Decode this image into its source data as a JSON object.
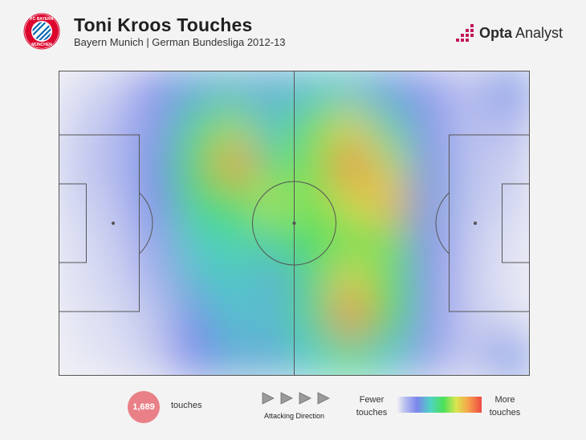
{
  "header": {
    "title": "Toni Kroos Touches",
    "subtitle": "Bayern Munich | German Bundesliga 2012-13",
    "club_badge_icon": "fc-bayern-munchen-badge-icon",
    "brand": {
      "name_bold": "Opta",
      "name_regular": " Analyst"
    }
  },
  "footer": {
    "touch_count": "1,689",
    "touch_label": "touches",
    "direction_label": "Attacking Direction",
    "legend_low": "Fewer touches",
    "legend_high": "More touches"
  },
  "colors": {
    "background": "#f3f3f3",
    "badge_red": "#dc052d",
    "badge_blue": "#0066b2",
    "brand_pink": "#c2185b",
    "count_badge": "#e98087",
    "scale": [
      "#f3f3f3",
      "#7b86ec",
      "#4ce05a",
      "#d9e650",
      "#f6a34a",
      "#ec4a44"
    ]
  },
  "chart_data": {
    "type": "heatmap",
    "subject": "Toni Kroos",
    "total_touches": 1689,
    "attacking_direction": "left-to-right",
    "scale_min_label": "Fewer touches",
    "scale_max_label": "More touches",
    "grid": {
      "cols": 12,
      "rows": 8,
      "note": "relative touch density 0-1; columns run from own goal (left) to opponent goal (right), rows from top touchline to bottom touchline",
      "values": [
        [
          0.05,
          0.1,
          0.25,
          0.35,
          0.38,
          0.35,
          0.4,
          0.4,
          0.32,
          0.22,
          0.12,
          0.3
        ],
        [
          0.08,
          0.14,
          0.25,
          0.48,
          0.62,
          0.4,
          0.58,
          0.7,
          0.45,
          0.25,
          0.12,
          0.15
        ],
        [
          0.1,
          0.15,
          0.3,
          0.55,
          0.85,
          0.5,
          0.6,
          0.9,
          0.65,
          0.3,
          0.12,
          0.1
        ],
        [
          0.08,
          0.12,
          0.28,
          0.5,
          0.55,
          0.65,
          0.58,
          0.7,
          0.78,
          0.32,
          0.12,
          0.08
        ],
        [
          0.06,
          0.1,
          0.22,
          0.42,
          0.45,
          0.48,
          0.55,
          0.58,
          0.6,
          0.28,
          0.1,
          0.05
        ],
        [
          0.05,
          0.08,
          0.18,
          0.38,
          0.42,
          0.35,
          0.5,
          0.72,
          0.55,
          0.25,
          0.1,
          0.04
        ],
        [
          0.04,
          0.06,
          0.12,
          0.3,
          0.4,
          0.38,
          0.5,
          0.88,
          0.55,
          0.25,
          0.1,
          0.05
        ],
        [
          0.03,
          0.05,
          0.1,
          0.28,
          0.36,
          0.35,
          0.42,
          0.5,
          0.4,
          0.22,
          0.1,
          0.3
        ]
      ]
    }
  }
}
